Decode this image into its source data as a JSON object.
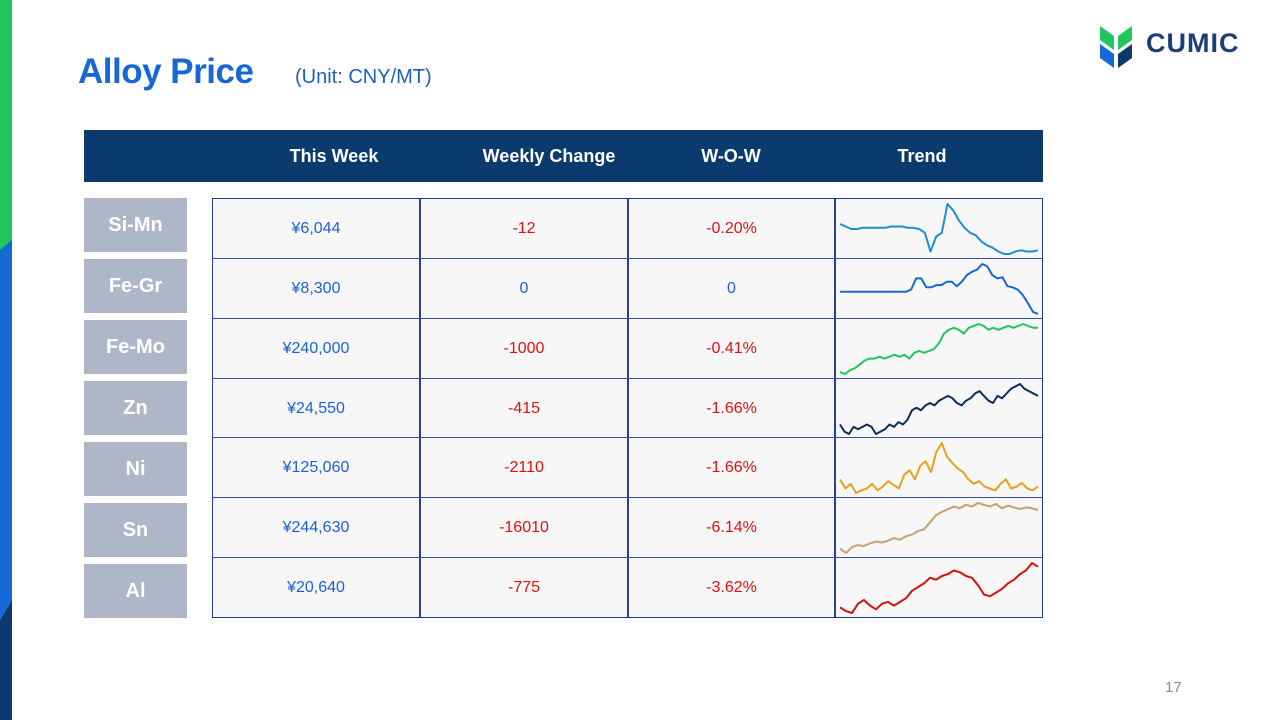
{
  "title": "Alloy Price",
  "unit": "(Unit: CNY/MT)",
  "logo_text": "CUMIC",
  "page_number": "17",
  "colors": {
    "accent": "#1668d6",
    "header_bg": "#0a3a6e",
    "label_bg": "#adb7c8",
    "negative": "#e01010"
  },
  "columns": [
    "This Week",
    "Weekly Change",
    "W-O-W",
    "Trend"
  ],
  "rows": [
    {
      "label": "Si-Mn",
      "price": "¥6,044",
      "change": "-12",
      "wow": "-0.20%",
      "change_color": "red",
      "trend_color": "#1b8fd0",
      "trend": [
        62,
        60,
        58,
        58,
        59,
        59,
        59,
        59,
        59,
        60,
        60,
        60,
        59,
        59,
        58,
        55,
        40,
        52,
        55,
        78,
        73,
        65,
        59,
        55,
        53,
        48,
        45,
        43,
        40,
        38,
        38,
        40,
        41,
        40,
        40,
        41
      ]
    },
    {
      "label": "Fe-Gr",
      "price": "¥8,300",
      "change": "0",
      "wow": "0",
      "change_color": "blue",
      "trend_color": "#1668d6",
      "trend": [
        40,
        40,
        40,
        40,
        40,
        40,
        40,
        40,
        40,
        40,
        40,
        40,
        40,
        40,
        42,
        52,
        52,
        44,
        44,
        46,
        46,
        49,
        49,
        45,
        49,
        55,
        58,
        60,
        65,
        63,
        55,
        52,
        53,
        45,
        44,
        42,
        37,
        30,
        22,
        20
      ]
    },
    {
      "label": "Fe-Mo",
      "price": "¥240,000",
      "change": "-1000",
      "wow": "-0.41%",
      "change_color": "red",
      "trend_color": "#22c55e",
      "trend": [
        30,
        29,
        31,
        32,
        34,
        36,
        37,
        37,
        38,
        37,
        38,
        39,
        38,
        39,
        37,
        40,
        41,
        40,
        41,
        42,
        45,
        50,
        52,
        53,
        52,
        50,
        53,
        54,
        55,
        54,
        52,
        53,
        52,
        53,
        54,
        53,
        54,
        55,
        54,
        53,
        53
      ]
    },
    {
      "label": "Zn",
      "price": "¥24,550",
      "change": "-415",
      "wow": "-1.66%",
      "change_color": "red",
      "trend_color": "#0b2d5e",
      "trend": [
        34,
        31,
        30,
        33,
        32,
        33,
        34,
        33,
        30,
        31,
        32,
        34,
        33,
        35,
        34,
        36,
        40,
        41,
        40,
        42,
        43,
        42,
        44,
        45,
        46,
        45,
        43,
        42,
        44,
        45,
        47,
        48,
        46,
        44,
        43,
        46,
        45,
        47,
        49,
        50,
        51,
        49,
        48,
        47,
        46
      ]
    },
    {
      "label": "Ni",
      "price": "¥125,060",
      "change": "-2110",
      "wow": "-1.66%",
      "change_color": "red",
      "trend_color": "#e8a020",
      "trend": [
        120,
        110,
        115,
        105,
        108,
        110,
        115,
        108,
        112,
        118,
        114,
        110,
        125,
        130,
        120,
        135,
        140,
        128,
        150,
        160,
        145,
        138,
        132,
        128,
        120,
        115,
        118,
        112,
        110,
        108,
        115,
        120,
        110,
        112,
        116,
        110,
        108,
        112
      ]
    },
    {
      "label": "Sn",
      "price": "¥244,630",
      "change": "-16010",
      "wow": "-6.14%",
      "change_color": "red",
      "trend_color": "#c8a070",
      "trend": [
        180,
        175,
        182,
        184,
        183,
        186,
        188,
        187,
        189,
        192,
        190,
        194,
        196,
        200,
        202,
        210,
        218,
        222,
        225,
        228,
        226,
        230,
        228,
        232,
        230,
        228,
        231,
        226,
        229,
        227,
        225,
        227,
        226,
        224
      ]
    },
    {
      "label": "Al",
      "price": "¥20,640",
      "change": "-775",
      "wow": "-3.62%",
      "change_color": "red",
      "trend_color": "#d41010",
      "trend": [
        18.6,
        18.4,
        18.3,
        18.8,
        19.0,
        18.7,
        18.5,
        18.8,
        18.9,
        18.7,
        18.9,
        19.1,
        19.5,
        19.7,
        19.9,
        20.2,
        20.1,
        20.3,
        20.4,
        20.6,
        20.5,
        20.3,
        20.2,
        19.8,
        19.3,
        19.2,
        19.4,
        19.6,
        19.9,
        20.1,
        20.4,
        20.6,
        21.0,
        20.8
      ]
    }
  ]
}
